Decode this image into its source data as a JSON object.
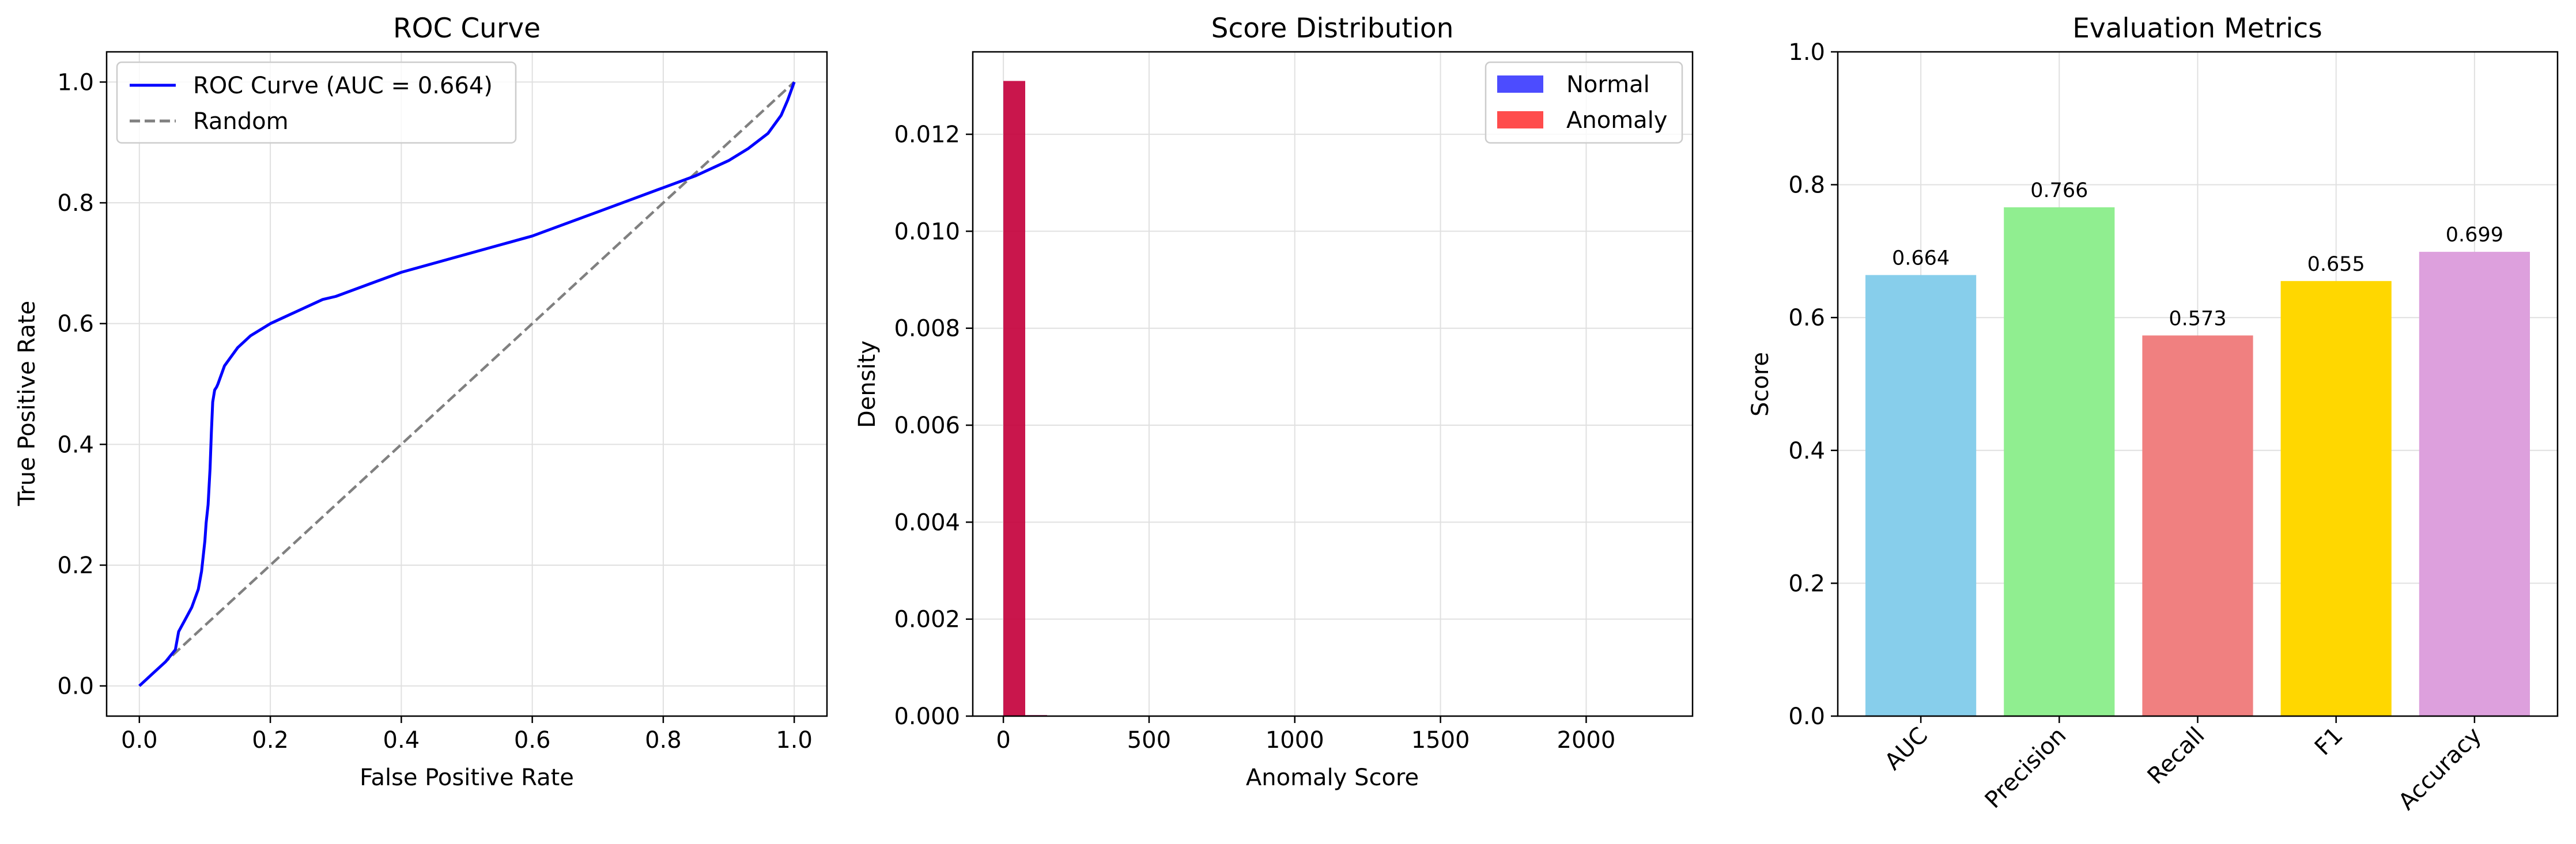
{
  "chart_data": [
    {
      "type": "line",
      "title": "ROC Curve",
      "xlabel": "False Positive Rate",
      "ylabel": "True Positive Rate",
      "xlim": [
        -0.05,
        1.05
      ],
      "ylim": [
        -0.05,
        1.05
      ],
      "xticks": [
        0.0,
        0.2,
        0.4,
        0.6,
        0.8,
        1.0
      ],
      "yticks": [
        0.0,
        0.2,
        0.4,
        0.6,
        0.8,
        1.0
      ],
      "xtick_labels": [
        "0.0",
        "0.2",
        "0.4",
        "0.6",
        "0.8",
        "1.0"
      ],
      "ytick_labels": [
        "0.0",
        "0.2",
        "0.4",
        "0.6",
        "0.8",
        "1.0"
      ],
      "grid": true,
      "legend_position": "upper-left",
      "series": [
        {
          "name": "ROC Curve (AUC = 0.664)",
          "color": "#0000ff",
          "style": "solid",
          "x": [
            0.0,
            0.02,
            0.04,
            0.055,
            0.06,
            0.07,
            0.08,
            0.09,
            0.095,
            0.1,
            0.102,
            0.105,
            0.108,
            0.11,
            0.112,
            0.115,
            0.118,
            0.12,
            0.13,
            0.14,
            0.15,
            0.17,
            0.2,
            0.22,
            0.25,
            0.28,
            0.3,
            0.35,
            0.4,
            0.45,
            0.5,
            0.55,
            0.6,
            0.65,
            0.7,
            0.75,
            0.8,
            0.85,
            0.9,
            0.93,
            0.96,
            0.98,
            0.99,
            1.0
          ],
          "y": [
            0.0,
            0.02,
            0.04,
            0.06,
            0.09,
            0.11,
            0.13,
            0.16,
            0.19,
            0.24,
            0.27,
            0.3,
            0.36,
            0.42,
            0.47,
            0.49,
            0.495,
            0.5,
            0.53,
            0.545,
            0.56,
            0.58,
            0.6,
            0.61,
            0.625,
            0.64,
            0.645,
            0.665,
            0.685,
            0.7,
            0.715,
            0.73,
            0.745,
            0.765,
            0.785,
            0.805,
            0.825,
            0.845,
            0.87,
            0.89,
            0.915,
            0.945,
            0.97,
            1.0
          ]
        },
        {
          "name": "Random",
          "color": "#808080",
          "style": "dashed",
          "x": [
            0.0,
            1.0
          ],
          "y": [
            0.0,
            1.0
          ]
        }
      ]
    },
    {
      "type": "bar",
      "subtype": "histogram",
      "title": "Score Distribution",
      "xlabel": "Anomaly Score",
      "ylabel": "Density",
      "xlim": [
        -105,
        2365
      ],
      "ylim": [
        0,
        0.0137
      ],
      "xticks": [
        0,
        500,
        1000,
        1500,
        2000
      ],
      "yticks": [
        0.0,
        0.002,
        0.004,
        0.006,
        0.008,
        0.01,
        0.012
      ],
      "xtick_labels": [
        "0",
        "500",
        "1000",
        "1500",
        "2000"
      ],
      "ytick_labels": [
        "0.000",
        "0.002",
        "0.004",
        "0.006",
        "0.008",
        "0.010",
        "0.012"
      ],
      "grid": true,
      "legend_position": "upper-right",
      "series": [
        {
          "name": "Normal",
          "color": "#0000ff",
          "bins": [
            [
              0,
              75,
              0.0131
            ],
            [
              75,
              150,
              2e-05
            ]
          ]
        },
        {
          "name": "Anomaly",
          "color": "#ff0000",
          "bins": [
            [
              0,
              75,
              0.0131
            ],
            [
              75,
              150,
              2e-05
            ],
            [
              525,
              600,
              5e-06
            ]
          ]
        }
      ]
    },
    {
      "type": "bar",
      "title": "Evaluation Metrics",
      "xlabel": "",
      "ylabel": "Score",
      "ylim": [
        0,
        1.0
      ],
      "yticks": [
        0.0,
        0.2,
        0.4,
        0.6,
        0.8,
        1.0
      ],
      "ytick_labels": [
        "0.0",
        "0.2",
        "0.4",
        "0.6",
        "0.8",
        "1.0"
      ],
      "grid": true,
      "categories": [
        "AUC",
        "Precision",
        "Recall",
        "F1",
        "Accuracy"
      ],
      "values": [
        0.664,
        0.766,
        0.573,
        0.655,
        0.699
      ],
      "value_labels": [
        "0.664",
        "0.766",
        "0.573",
        "0.655",
        "0.699"
      ],
      "colors": [
        "#87ceeb",
        "#90ee90",
        "#f08080",
        "#ffd700",
        "#dda0dd"
      ]
    }
  ]
}
